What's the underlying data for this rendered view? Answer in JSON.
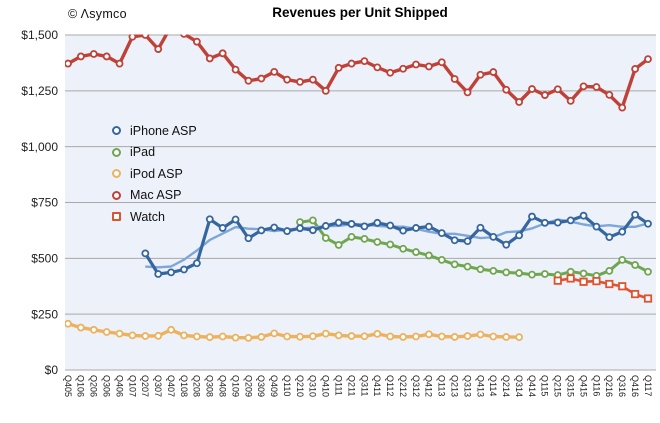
{
  "watermark": "© Λsymco",
  "title": "Revenues per Unit Shipped",
  "chart_data": {
    "type": "line",
    "title": "Revenues per Unit Shipped",
    "ylim": [
      0,
      1500
    ],
    "y_tick_step": 250,
    "y_tick_labels": [
      "$0",
      "$250",
      "$500",
      "$750",
      "$1,000",
      "$1,250",
      "$1,500"
    ],
    "grid": true,
    "legend_position": "inside-left",
    "categories": [
      "Q405",
      "Q106",
      "Q206",
      "Q306",
      "Q406",
      "Q107",
      "Q207",
      "Q307",
      "Q407",
      "Q108",
      "Q208",
      "Q308",
      "Q408",
      "Q109",
      "Q209",
      "Q309",
      "Q409",
      "Q110",
      "Q210",
      "Q310",
      "Q410",
      "Q111",
      "Q211",
      "Q311",
      "Q411",
      "Q112",
      "Q212",
      "Q312",
      "Q412",
      "Q113",
      "Q213",
      "Q313",
      "Q413",
      "Q114",
      "Q214",
      "Q314",
      "Q414",
      "Q115",
      "Q215",
      "Q315",
      "Q415",
      "Q116",
      "Q216",
      "Q316",
      "Q416",
      "Q117"
    ],
    "series": [
      {
        "name": "iPhone ASP",
        "color": "#3566a0",
        "marker": "circle",
        "start_index": 6,
        "values": [
          522,
          430,
          437,
          450,
          478,
          675,
          636,
          674,
          590,
          625,
          638,
          622,
          635,
          626,
          645,
          660,
          654,
          643,
          659,
          647,
          624,
          636,
          642,
          613,
          581,
          577,
          637,
          596,
          561,
          603,
          687,
          659,
          660,
          670,
          691,
          642,
          595,
          619,
          695,
          655
        ]
      },
      {
        "name": "iPad",
        "color": "#6fa650",
        "marker": "circle",
        "start_index": 18,
        "values": [
          662,
          670,
          591,
          560,
          596,
          587,
          573,
          562,
          543,
          528,
          513,
          493,
          473,
          463,
          451,
          444,
          437,
          434,
          427,
          430,
          425,
          440,
          432,
          422,
          444,
          493,
          470,
          440
        ]
      },
      {
        "name": "iPod ASP",
        "color": "#edb260",
        "marker": "circle",
        "start_index": 0,
        "values": [
          207,
          190,
          180,
          170,
          163,
          155,
          152,
          153,
          180,
          155,
          150,
          147,
          150,
          145,
          144,
          148,
          164,
          150,
          149,
          151,
          163,
          155,
          152,
          151,
          162,
          150,
          148,
          150,
          160,
          150,
          148,
          152,
          159,
          150,
          148,
          147
        ]
      },
      {
        "name": "Mac ASP",
        "color": "#bf4137",
        "marker": "circle",
        "start_index": 0,
        "values": [
          1372,
          1404,
          1415,
          1404,
          1372,
          1492,
          1500,
          1437,
          1540,
          1505,
          1470,
          1395,
          1418,
          1345,
          1295,
          1305,
          1335,
          1300,
          1290,
          1300,
          1250,
          1353,
          1372,
          1383,
          1355,
          1331,
          1349,
          1368,
          1359,
          1378,
          1303,
          1243,
          1322,
          1334,
          1255,
          1200,
          1258,
          1231,
          1257,
          1205,
          1270,
          1267,
          1232,
          1175,
          1348,
          1392
        ]
      },
      {
        "name": "Watch",
        "color": "#e0532f",
        "marker": "square",
        "start_index": 38,
        "values": [
          400,
          410,
          395,
          398,
          385,
          375,
          340,
          320
        ]
      }
    ],
    "trend_line": {
      "for": "iPhone ASP",
      "color": "#7ea6d8",
      "window": 5
    }
  }
}
